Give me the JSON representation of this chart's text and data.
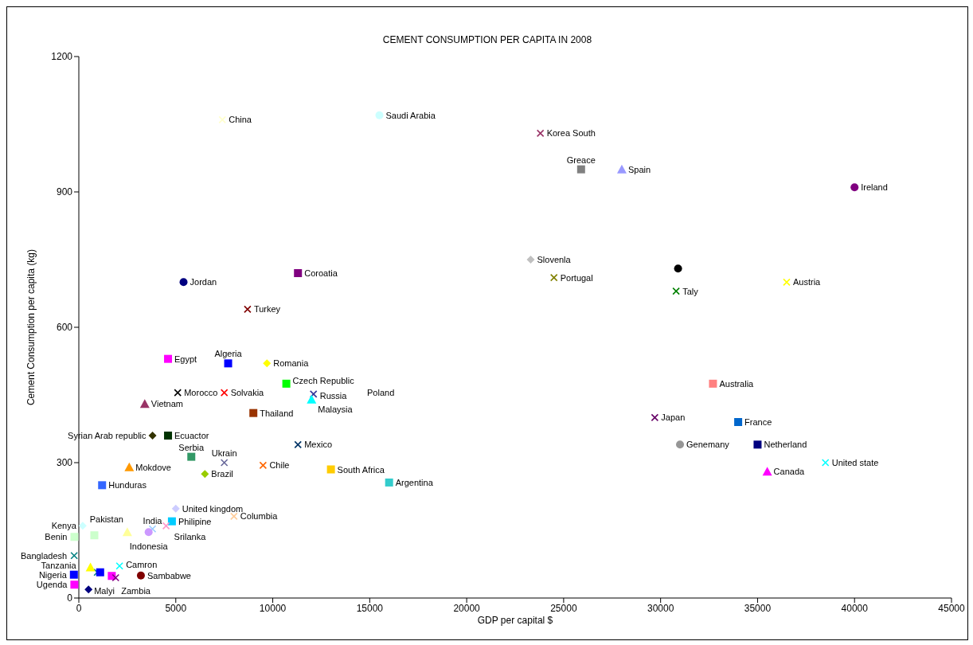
{
  "chart_data": {
    "type": "scatter",
    "title": "CEMENT CONSUMPTION PER CAPITA IN 2008",
    "xlabel": "GDP  per capital $",
    "ylabel": "Cement Consumption per capita (kg)",
    "xlim": [
      0,
      45000
    ],
    "xticks": [
      0,
      5000,
      10000,
      15000,
      20000,
      25000,
      30000,
      35000,
      40000,
      45000
    ],
    "ylim": [
      0,
      1200
    ],
    "yticks": [
      0,
      300,
      600,
      900,
      1200
    ],
    "grid": false,
    "legend": "left",
    "annotations": [
      "Poland"
    ],
    "series": [
      {
        "name": "China",
        "color": "#ffffcc",
        "marker": "cross",
        "x": [
          7400
        ],
        "values": [
          1060
        ]
      },
      {
        "name": "Saudi Arabia",
        "color": "#ccffff",
        "marker": "circle",
        "x": [
          15500
        ],
        "values": [
          1070
        ]
      },
      {
        "name": "Korea South",
        "color": "#993366",
        "marker": "cross",
        "x": [
          23800
        ],
        "values": [
          1030
        ]
      },
      {
        "name": "Greace",
        "color": "#808080",
        "marker": "square",
        "x": [
          25900
        ],
        "values": [
          950
        ]
      },
      {
        "name": "Spain",
        "color": "#9999ff",
        "marker": "triangle",
        "x": [
          28000
        ],
        "values": [
          950
        ]
      },
      {
        "name": "Ireland",
        "color": "#800080",
        "marker": "circle",
        "x": [
          40000
        ],
        "values": [
          910
        ]
      },
      {
        "name": "Slovenla",
        "color": "#c0c0c0",
        "marker": "diamond",
        "x": [
          23300
        ],
        "values": [
          750
        ]
      },
      {
        "name": "Portugal",
        "color": "#808000",
        "marker": "cross",
        "x": [
          24500
        ],
        "values": [
          710
        ]
      },
      {
        "color": "#000000",
        "marker": "circle",
        "x": [
          30900
        ],
        "values": [
          730
        ]
      },
      {
        "name": "Taly",
        "color": "#008000",
        "marker": "cross",
        "x": [
          30800
        ],
        "values": [
          680
        ]
      },
      {
        "name": "Austria",
        "color": "#ffff00",
        "marker": "cross",
        "x": [
          36500
        ],
        "values": [
          700
        ]
      },
      {
        "name": "Jordan",
        "color": "#000080",
        "marker": "circle",
        "x": [
          5400
        ],
        "values": [
          700
        ]
      },
      {
        "name": "Coroatia",
        "color": "#800080",
        "marker": "square",
        "x": [
          11300
        ],
        "values": [
          720
        ]
      },
      {
        "name": "Turkey",
        "color": "#800000",
        "marker": "cross",
        "x": [
          8700
        ],
        "values": [
          640
        ]
      },
      {
        "name": "Egypt",
        "color": "#ff00ff",
        "marker": "square",
        "x": [
          4600
        ],
        "values": [
          530
        ]
      },
      {
        "name": "Algeria",
        "color": "#0000ff",
        "marker": "square",
        "x": [
          7700
        ],
        "values": [
          520
        ]
      },
      {
        "name": "Romania",
        "color": "#ffff00",
        "marker": "diamond",
        "x": [
          9700
        ],
        "values": [
          520
        ]
      },
      {
        "name": "Morocco",
        "color": "#000000",
        "marker": "cross",
        "x": [
          5100
        ],
        "values": [
          455
        ]
      },
      {
        "name": "Solvakia",
        "color": "#ff0000",
        "marker": "cross",
        "x": [
          7500
        ],
        "values": [
          455
        ]
      },
      {
        "name": "Czech Republic",
        "color": "#00ff00",
        "marker": "square",
        "x": [
          10700
        ],
        "values": [
          475
        ]
      },
      {
        "name": "Russia",
        "color": "#333399",
        "marker": "cross",
        "x": [
          12100
        ],
        "values": [
          452
        ]
      },
      {
        "name": "Malaysia",
        "color": "#00ffff",
        "marker": "triangle",
        "x": [
          12000
        ],
        "values": [
          440
        ]
      },
      {
        "name": "Vietnam",
        "color": "#993366",
        "marker": "triangle",
        "x": [
          3400
        ],
        "values": [
          430
        ]
      },
      {
        "name": "Thailand",
        "color": "#993300",
        "marker": "square",
        "x": [
          9000
        ],
        "values": [
          410
        ]
      },
      {
        "name": "Syrian Arab republic",
        "color": "#333300",
        "marker": "diamond",
        "x": [
          3800
        ],
        "values": [
          360
        ]
      },
      {
        "name": "Ecuactor",
        "color": "#003300",
        "marker": "square",
        "x": [
          4600
        ],
        "values": [
          360
        ]
      },
      {
        "name": "Serbia",
        "color": "#339966",
        "marker": "square",
        "x": [
          5800
        ],
        "values": [
          313
        ]
      },
      {
        "name": "Mexico",
        "color": "#003366",
        "marker": "cross",
        "x": [
          11300
        ],
        "values": [
          340
        ]
      },
      {
        "name": "Mokdove",
        "color": "#ff9900",
        "marker": "triangle",
        "x": [
          2600
        ],
        "values": [
          290
        ]
      },
      {
        "name": "Ukrain",
        "color": "#666699",
        "marker": "cross",
        "x": [
          7500
        ],
        "values": [
          300
        ]
      },
      {
        "name": "Chile",
        "color": "#ff6600",
        "marker": "cross",
        "x": [
          9500
        ],
        "values": [
          294
        ]
      },
      {
        "name": "Brazil",
        "color": "#99cc00",
        "marker": "diamond",
        "x": [
          6500
        ],
        "values": [
          275
        ]
      },
      {
        "name": "South Africa",
        "color": "#ffcc00",
        "marker": "square",
        "x": [
          13000
        ],
        "values": [
          285
        ]
      },
      {
        "name": "Argentina",
        "color": "#33cccc",
        "marker": "square",
        "x": [
          16000
        ],
        "values": [
          256
        ]
      },
      {
        "name": "Hunduras",
        "color": "#3366ff",
        "marker": "square",
        "x": [
          1200
        ],
        "values": [
          250
        ]
      },
      {
        "name": "Australia",
        "color": "#ff8080",
        "marker": "square",
        "x": [
          32700
        ],
        "values": [
          475
        ]
      },
      {
        "name": "Japan",
        "color": "#660066",
        "marker": "cross",
        "x": [
          29700
        ],
        "values": [
          400
        ]
      },
      {
        "name": "France",
        "color": "#0066cc",
        "marker": "square",
        "x": [
          34000
        ],
        "values": [
          390
        ]
      },
      {
        "name": "Genemany",
        "color": "#969696",
        "marker": "circle",
        "x": [
          31000
        ],
        "values": [
          340
        ]
      },
      {
        "name": "Netherland",
        "color": "#000080",
        "marker": "square",
        "x": [
          35000
        ],
        "values": [
          340
        ]
      },
      {
        "name": "United state",
        "color": "#00ffff",
        "marker": "cross",
        "x": [
          38500
        ],
        "values": [
          300
        ]
      },
      {
        "name": "Canada",
        "color": "#ff00ff",
        "marker": "triangle",
        "x": [
          35500
        ],
        "values": [
          280
        ]
      },
      {
        "name": "United kingdom",
        "color": "#ccccff",
        "marker": "diamond",
        "x": [
          5000
        ],
        "values": [
          198
        ]
      },
      {
        "name": "Pakistan",
        "color": "#ffff99",
        "marker": "triangle",
        "x": [
          2500
        ],
        "values": [
          146
        ]
      },
      {
        "name": "Philipine",
        "color": "#00ccff",
        "marker": "square",
        "x": [
          4800
        ],
        "values": [
          170
        ]
      },
      {
        "name": "Columbia",
        "color": "#ffcc99",
        "marker": "cross",
        "x": [
          8000
        ],
        "values": [
          181
        ]
      },
      {
        "name": "Kenya",
        "color": "#ccffff",
        "marker": "diamond",
        "x": [
          200
        ],
        "values": [
          160
        ]
      },
      {
        "name": "India",
        "color": "#99ccff",
        "marker": "cross",
        "x": [
          3800
        ],
        "values": [
          153
        ]
      },
      {
        "name": "Benin",
        "color": "#ccffcc",
        "marker": "square",
        "x": [
          800
        ],
        "values": [
          139
        ]
      },
      {
        "name": "Srilanka",
        "color": "#ff99cc",
        "marker": "cross",
        "x": [
          4500
        ],
        "values": [
          160
        ]
      },
      {
        "name": "Indonesia",
        "color": "#cc99ff",
        "marker": "circle",
        "x": [
          3600
        ],
        "values": [
          146
        ]
      },
      {
        "name": "Bangladesh",
        "color": "#008080",
        "marker": "cross",
        "x": [
          950
        ],
        "values": [
          57
        ]
      },
      {
        "name": "Camron",
        "color": "#00ffff",
        "marker": "cross",
        "x": [
          2100
        ],
        "values": [
          71
        ]
      },
      {
        "name": "Ugenda",
        "color": "#ff00ff",
        "marker": "square",
        "x": [
          1700
        ],
        "values": [
          49
        ]
      },
      {
        "name": "Tanzania",
        "color": "#ffff00",
        "marker": "triangle",
        "x": [
          600
        ],
        "values": [
          68
        ]
      },
      {
        "name": "Nigeria",
        "color": "#0000ff",
        "marker": "square",
        "x": [
          1100
        ],
        "values": [
          57
        ]
      },
      {
        "name": "Sambabwe",
        "color": "#800000",
        "marker": "circle",
        "x": [
          3200
        ],
        "values": [
          50
        ]
      },
      {
        "name": "Malyi",
        "color": "#000080",
        "marker": "diamond",
        "x": [
          500
        ],
        "values": [
          19
        ]
      },
      {
        "name": "Zambia",
        "color": "#800080",
        "marker": "cross",
        "x": [
          1900
        ],
        "values": [
          45
        ]
      }
    ]
  }
}
